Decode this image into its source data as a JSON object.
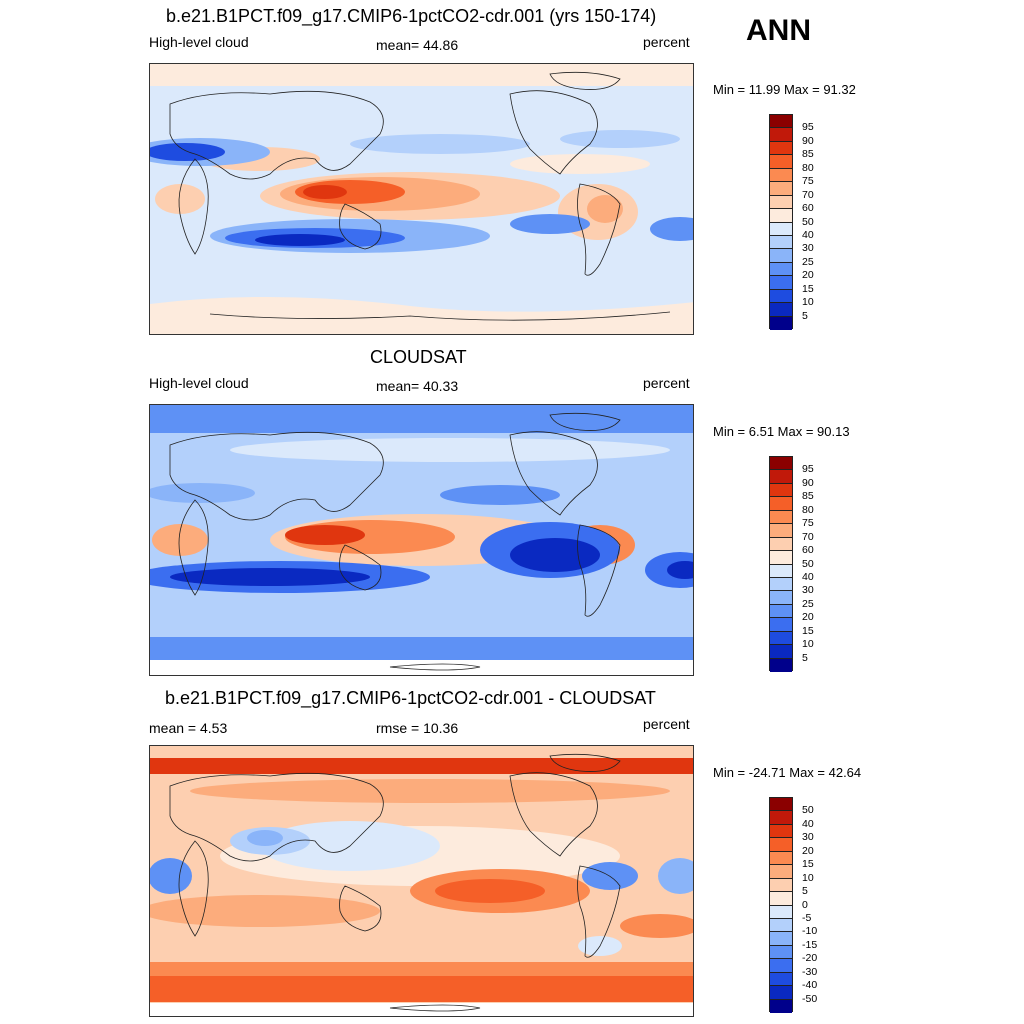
{
  "season": "ANN",
  "panels": [
    {
      "title": "b.e21.B1PCT.f09_g17.CMIP6-1pctCO2-cdr.001 (yrs 150-174)",
      "left": "High-level cloud",
      "center": "mean=  44.86",
      "right": "percent",
      "minmax": "Min =  11.99 Max =  91.32",
      "colorbar_labels": [
        "95",
        "90",
        "85",
        "80",
        "75",
        "70",
        "60",
        "50",
        "40",
        "30",
        "25",
        "20",
        "15",
        "10",
        "5"
      ],
      "colorbar_colors": [
        "#8b0000",
        "#c1190a",
        "#e0360f",
        "#f55f28",
        "#fb8a51",
        "#fcac7c",
        "#fdcfb0",
        "#fdebdd",
        "#dbe9fb",
        "#b3d0fb",
        "#8ab4f9",
        "#5e91f5",
        "#3b6ef0",
        "#1e4ce0",
        "#0a29c1",
        "#00008b"
      ]
    },
    {
      "title": "CLOUDSAT",
      "left": "High-level cloud",
      "center": "mean=  40.33",
      "right": "percent",
      "minmax": "Min =   6.51 Max =  90.13",
      "colorbar_labels": [
        "95",
        "90",
        "85",
        "80",
        "75",
        "70",
        "60",
        "50",
        "40",
        "30",
        "25",
        "20",
        "15",
        "10",
        "5"
      ],
      "colorbar_colors": [
        "#8b0000",
        "#c1190a",
        "#e0360f",
        "#f55f28",
        "#fb8a51",
        "#fcac7c",
        "#fdcfb0",
        "#fdebdd",
        "#dbe9fb",
        "#b3d0fb",
        "#8ab4f9",
        "#5e91f5",
        "#3b6ef0",
        "#1e4ce0",
        "#0a29c1",
        "#00008b"
      ]
    },
    {
      "title": "b.e21.B1PCT.f09_g17.CMIP6-1pctCO2-cdr.001 - CLOUDSAT",
      "left": "mean =   4.53",
      "center": "rmse =  10.36",
      "right": "percent",
      "minmax": "Min = -24.71 Max =  42.64",
      "colorbar_labels": [
        "50",
        "40",
        "30",
        "20",
        "15",
        "10",
        "5",
        "0",
        "-5",
        "-10",
        "-15",
        "-20",
        "-30",
        "-40",
        "-50"
      ],
      "colorbar_colors": [
        "#8b0000",
        "#c1190a",
        "#e0360f",
        "#f55f28",
        "#fb8a51",
        "#fcac7c",
        "#fdcfb0",
        "#fdebdd",
        "#dbe9fb",
        "#b3d0fb",
        "#8ab4f9",
        "#5e91f5",
        "#3b6ef0",
        "#1e4ce0",
        "#0a29c1",
        "#00008b"
      ]
    }
  ]
}
